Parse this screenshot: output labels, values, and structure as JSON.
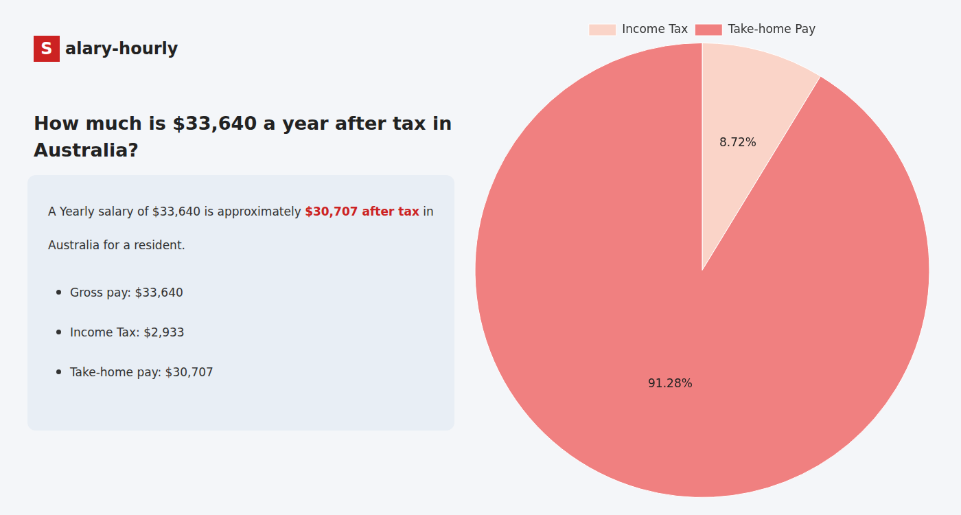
{
  "chart_data": {
    "type": "pie",
    "title": "How much is $33,640 a year after tax in\nAustralia?",
    "annotations": [
      "S",
      "alary-hourly",
      "A Yearly salary of $33,640 is approximately ",
      "$30,707 after tax",
      " in",
      "Australia for a resident.",
      "Gross pay: $33,640",
      "Income Tax: $2,933",
      "Take-home pay: $30,707"
    ],
    "categories": [
      "Income Tax",
      "Take-home Pay"
    ],
    "values": [
      8.72,
      91.28
    ],
    "value_labels": [
      "8.72%",
      "91.28%"
    ],
    "colors": [
      "#fad4c8",
      "#f08080"
    ],
    "data_labels": true,
    "legend": "top"
  }
}
